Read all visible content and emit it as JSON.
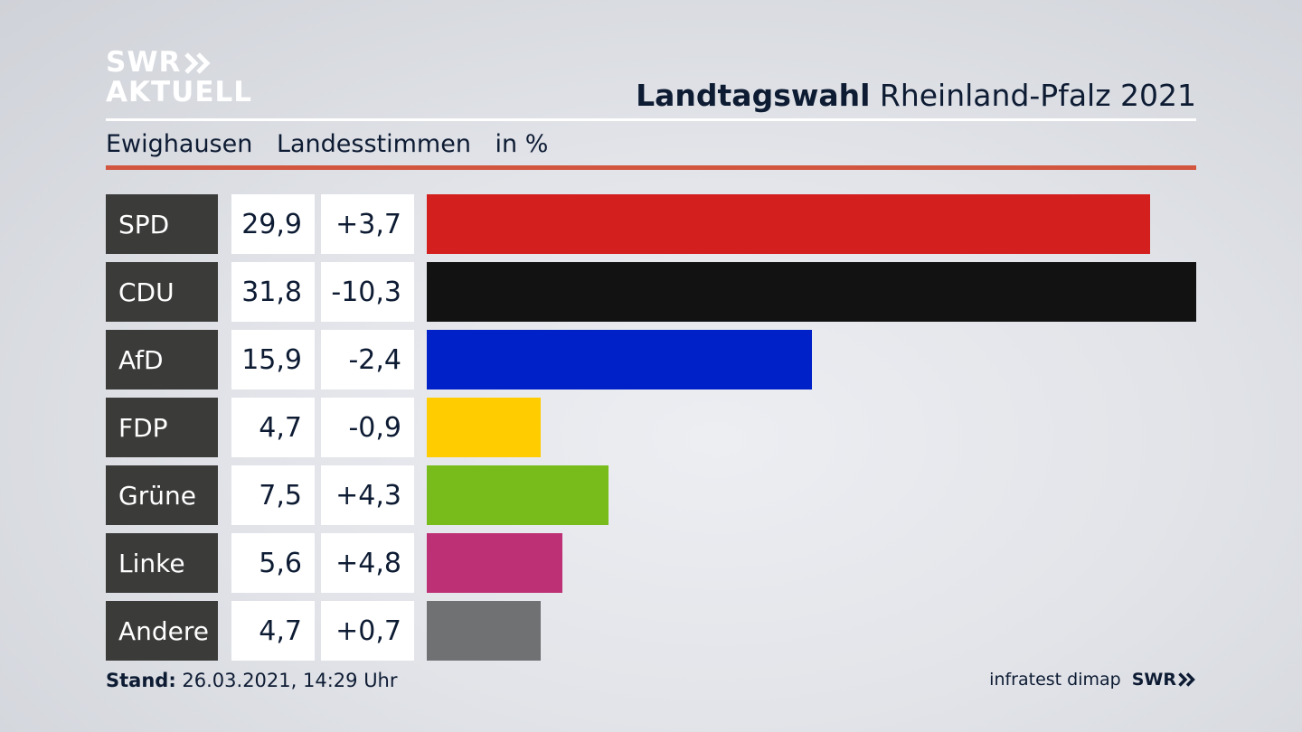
{
  "brand": {
    "line1": "SWR",
    "line2": "AKTUELL"
  },
  "headline": {
    "bold": "Landtagswahl",
    "rest": "Rheinland-Pfalz 2021"
  },
  "subline": {
    "place": "Ewighausen",
    "measure": "Landesstimmen",
    "unit": "in %"
  },
  "chart_data": {
    "type": "bar",
    "orientation": "horizontal",
    "categories": [
      "SPD",
      "CDU",
      "AfD",
      "FDP",
      "Grüne",
      "Linke",
      "Andere"
    ],
    "values": [
      29.9,
      31.8,
      15.9,
      4.7,
      7.5,
      5.6,
      4.7
    ],
    "values_text": [
      "29,9",
      "31,8",
      "15,9",
      "4,7",
      "7,5",
      "5,6",
      "4,7"
    ],
    "changes": [
      3.7,
      -10.3,
      -2.4,
      -0.9,
      4.3,
      4.8,
      0.7
    ],
    "changes_text": [
      "+3,7",
      "-10,3",
      "-2,4",
      "-0,9",
      "+4,3",
      "+4,8",
      "+0,7"
    ],
    "colors": [
      "#d41f1f",
      "#121212",
      "#0021c8",
      "#ffcc00",
      "#78bc1b",
      "#bd3075",
      "#707173"
    ],
    "xlim": [
      0,
      31.8
    ],
    "grid": false
  },
  "footer": {
    "stand_label": "Stand:",
    "stand_value": "26.03.2021, 14:29 Uhr",
    "source": "infratest dimap",
    "brand": "SWR"
  },
  "colors": {
    "accent_rule": "#d2553f",
    "party_label_bg": "#3b3b3a"
  }
}
